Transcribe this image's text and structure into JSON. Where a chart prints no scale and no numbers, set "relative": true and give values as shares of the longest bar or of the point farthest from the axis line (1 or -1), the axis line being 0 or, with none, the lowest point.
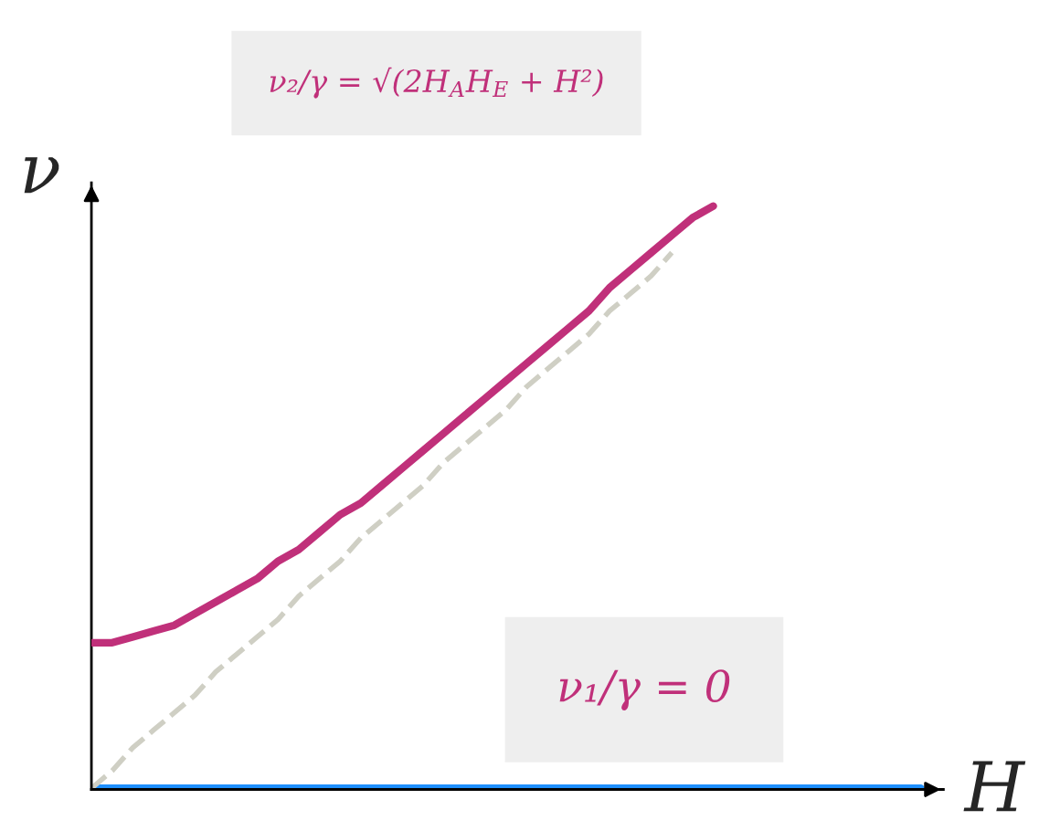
{
  "chart_data": {
    "type": "line",
    "relative": true,
    "xlabel": "H",
    "ylabel": "ν",
    "categories": [
      null,
      null,
      null,
      null,
      null,
      null,
      null,
      null,
      null,
      null,
      null,
      null,
      null,
      null,
      null,
      null,
      null,
      null,
      null,
      null,
      null,
      null,
      null,
      null,
      null,
      null,
      null,
      null,
      null,
      null,
      null,
      null,
      null,
      null,
      null,
      null,
      null,
      null,
      null,
      null,
      null
    ],
    "series": [
      {
        "color": "#c0307a",
        "line_style": "solid",
        "values": [
          0.25,
          0.25,
          0.26,
          0.27,
          0.28,
          0.3,
          0.32,
          0.34,
          0.36,
          0.39,
          0.41,
          0.44,
          0.47,
          0.49,
          0.52,
          0.55,
          0.58,
          0.61,
          0.64,
          0.67,
          0.7,
          0.73,
          0.76,
          0.79,
          0.82,
          0.86,
          0.89,
          0.92,
          0.95,
          0.98,
          1.0,
          null,
          null,
          null,
          null,
          null,
          null,
          null,
          null,
          null,
          null
        ]
      },
      {
        "color": "#cfcfc4",
        "line_style": "dashed",
        "values": [
          0,
          0.03,
          0.07,
          0.1,
          0.13,
          0.16,
          0.2,
          0.23,
          0.26,
          0.29,
          0.33,
          0.36,
          0.39,
          0.43,
          0.46,
          0.49,
          0.52,
          0.56,
          0.59,
          0.62,
          0.65,
          0.69,
          0.72,
          0.75,
          0.78,
          0.82,
          0.85,
          0.88,
          0.92,
          null,
          null,
          null,
          null,
          null,
          null,
          null,
          null,
          null,
          null,
          null,
          null
        ]
      },
      {
        "color": "#1e90ff",
        "line_style": "solid",
        "values": [
          0,
          0,
          0,
          0,
          0,
          0,
          0,
          0,
          0,
          0,
          0,
          0,
          0,
          0,
          0,
          0,
          0,
          0,
          0,
          0,
          0,
          0,
          0,
          0,
          0,
          0,
          0,
          0,
          0,
          0,
          0,
          0,
          0,
          0,
          0,
          0,
          0,
          0,
          0,
          0,
          0
        ]
      }
    ],
    "annotations": [
      "ν₂/γ = √(2H$_{A}$H$_{E}$ + H²)",
      "ν₁/γ = 0"
    ],
    "legend": false,
    "marker": "none"
  }
}
